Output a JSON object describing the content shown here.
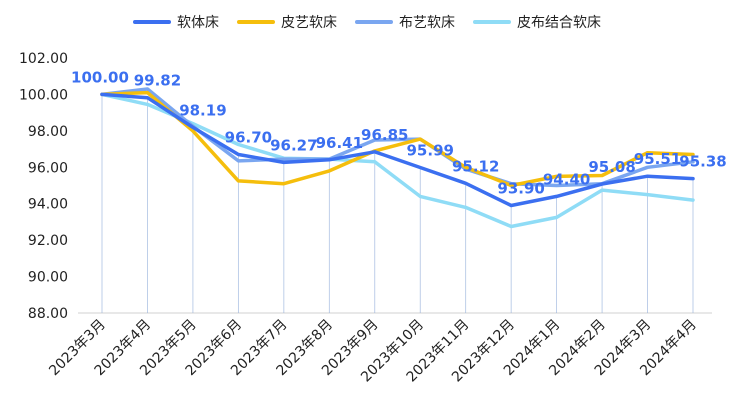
{
  "chart_data": {
    "type": "line",
    "title": "",
    "xlabel": "",
    "ylabel": "",
    "ylim": [
      88,
      102
    ],
    "y_ticks": [
      "88.00",
      "90.00",
      "92.00",
      "94.00",
      "96.00",
      "98.00",
      "100.00",
      "102.00"
    ],
    "categories": [
      "2023年3月",
      "2023年4月",
      "2023年5月",
      "2023年6月",
      "2023年7月",
      "2023年8月",
      "2023年9月",
      "2023年10月",
      "2023年11月",
      "2023年12月",
      "2024年1月",
      "2024年2月",
      "2024年3月",
      "2024年4月"
    ],
    "legend_position": "top",
    "grid": false,
    "series": [
      {
        "name": "软体床",
        "color": "#3b6ff0",
        "labelled": true,
        "values": [
          100.0,
          99.82,
          98.19,
          96.7,
          96.27,
          96.41,
          96.85,
          95.99,
          95.12,
          93.9,
          94.4,
          95.08,
          95.51,
          95.38
        ],
        "labels": [
          "100.00",
          "99.82",
          "98.19",
          "96.70",
          "96.27",
          "96.41",
          "96.85",
          "95.99",
          "95.12",
          "93.90",
          "94.40",
          "95.08",
          "95.51",
          "95.38"
        ]
      },
      {
        "name": "皮艺软床",
        "color": "#f5be0c",
        "values": [
          100.0,
          100.1,
          98.0,
          95.25,
          95.1,
          95.8,
          96.9,
          97.55,
          96.0,
          95.0,
          95.5,
          95.55,
          96.8,
          96.7
        ]
      },
      {
        "name": "布艺软床",
        "color": "#7aa6f0",
        "values": [
          100.0,
          100.3,
          98.25,
          96.35,
          96.45,
          96.45,
          97.5,
          97.55,
          95.9,
          95.1,
          95.0,
          95.1,
          96.0,
          96.3
        ]
      },
      {
        "name": "皮布结合软床",
        "color": "#8fdcf6",
        "values": [
          100.0,
          99.45,
          98.4,
          97.25,
          96.5,
          96.45,
          96.3,
          94.4,
          93.8,
          92.75,
          93.25,
          94.75,
          94.5,
          94.2
        ]
      }
    ],
    "data_label_color": "#3b6ff0"
  }
}
